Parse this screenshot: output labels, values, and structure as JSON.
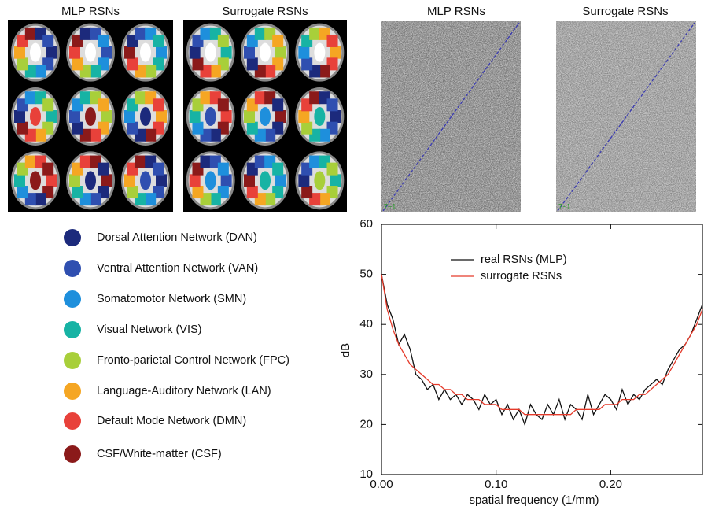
{
  "brain_panels": {
    "titles": [
      "MLP RSNs",
      "Surrogate RSNs"
    ]
  },
  "spectra_panels": {
    "titles": [
      "MLP RSNs",
      "Surrogate RSNs"
    ],
    "corner_label": "7~1"
  },
  "network_legend": [
    {
      "name": "Dorsal Attention Network (DAN)",
      "color": "#1c2a7c"
    },
    {
      "name": "Ventral Attention Network (VAN)",
      "color": "#2f4fb0"
    },
    {
      "name": "Somatomotor Network (SMN)",
      "color": "#1e8fdc"
    },
    {
      "name": "Visual Network (VIS)",
      "color": "#17b3a4"
    },
    {
      "name": "Fronto-parietal Control Network (FPC)",
      "color": "#a8cf3a"
    },
    {
      "name": "Language-Auditory Network (LAN)",
      "color": "#f5a623"
    },
    {
      "name": "Default Mode Network (DMN)",
      "color": "#e8413a"
    },
    {
      "name": "CSF/White-matter (CSF)",
      "color": "#8b1a1a"
    }
  ],
  "chart_data": {
    "type": "line",
    "xlabel": "spatial frequency (1/mm)",
    "ylabel": "dB",
    "x": [
      0,
      0.005,
      0.01,
      0.015,
      0.02,
      0.025,
      0.03,
      0.035,
      0.04,
      0.045,
      0.05,
      0.055,
      0.06,
      0.065,
      0.07,
      0.075,
      0.08,
      0.085,
      0.09,
      0.095,
      0.1,
      0.105,
      0.11,
      0.115,
      0.12,
      0.125,
      0.13,
      0.135,
      0.14,
      0.145,
      0.15,
      0.155,
      0.16,
      0.165,
      0.17,
      0.175,
      0.18,
      0.185,
      0.19,
      0.195,
      0.2,
      0.205,
      0.21,
      0.215,
      0.22,
      0.225,
      0.23,
      0.235,
      0.24,
      0.245,
      0.25,
      0.255,
      0.26,
      0.265,
      0.27,
      0.275,
      0.28
    ],
    "series": [
      {
        "name": "real RSNs (MLP)",
        "color": "#111111",
        "values": [
          50,
          44,
          41,
          36,
          38,
          35,
          30,
          29,
          27,
          28,
          25,
          27,
          25,
          26,
          24,
          26,
          25,
          23,
          26,
          24,
          25,
          22,
          24,
          21,
          23,
          20,
          24,
          22,
          21,
          24,
          22,
          25,
          21,
          24,
          23,
          21,
          26,
          22,
          24,
          26,
          25,
          23,
          27,
          24,
          26,
          25,
          27,
          28,
          29,
          28,
          31,
          33,
          35,
          36,
          38,
          41,
          44
        ]
      },
      {
        "name": "surrogate RSNs",
        "color": "#e53a2a",
        "values": [
          50,
          43,
          39,
          36,
          34,
          32,
          31,
          30,
          29,
          28,
          28,
          27,
          27,
          26,
          26,
          25,
          25,
          25,
          24,
          24,
          24,
          23,
          23,
          23,
          23,
          22,
          22,
          22,
          22,
          22,
          22,
          22,
          22,
          22,
          23,
          23,
          23,
          23,
          23,
          24,
          24,
          24,
          25,
          25,
          25,
          26,
          26,
          27,
          28,
          29,
          30,
          32,
          34,
          36,
          38,
          40,
          43
        ]
      }
    ],
    "xlim": [
      0,
      0.28
    ],
    "xticks": [
      {
        "value": 0,
        "label": "0.00"
      },
      {
        "value": 0.1,
        "label": "0.10"
      },
      {
        "value": 0.2,
        "label": "0.20"
      }
    ],
    "ylim": [
      10,
      60
    ],
    "yticks": [
      10,
      20,
      30,
      40,
      50,
      60
    ],
    "legend": "upper left"
  }
}
